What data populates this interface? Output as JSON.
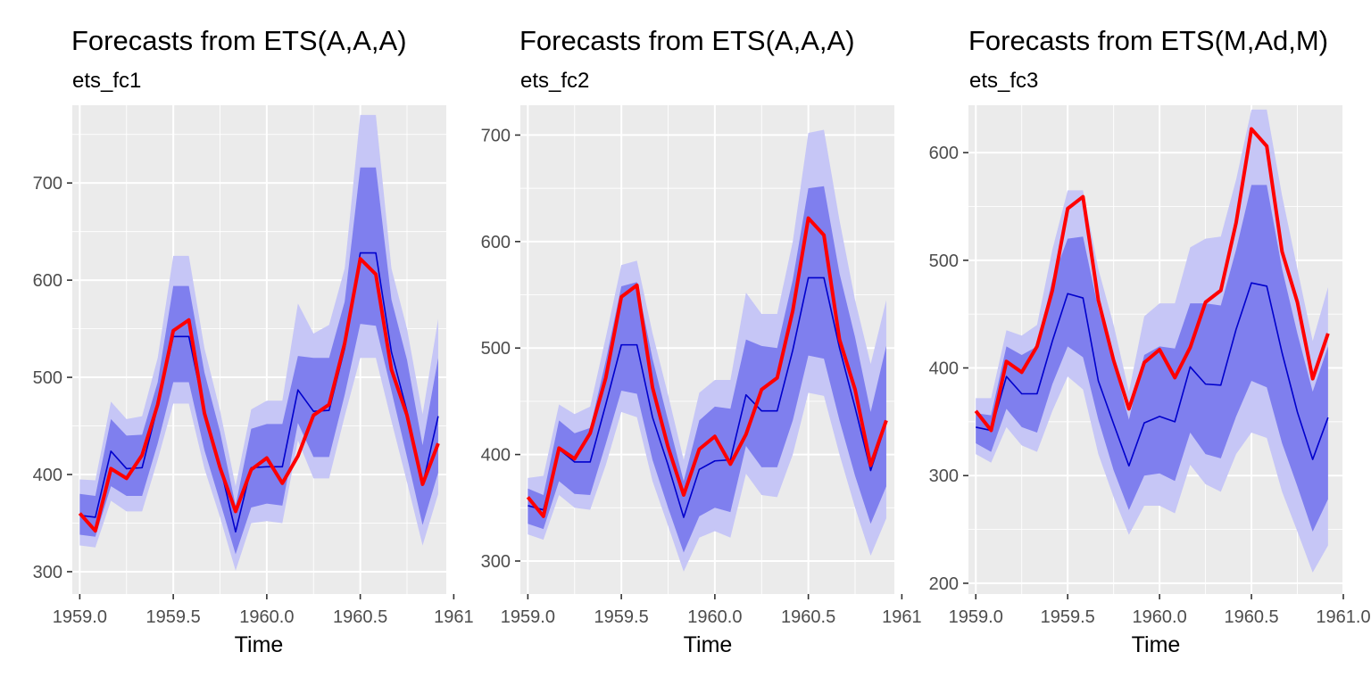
{
  "chart_data": [
    {
      "type": "line",
      "title": "Forecasts from ETS(A,A,A)",
      "subtitle": "ets_fc1",
      "xlabel": "Time",
      "ylabel": "",
      "xlim": [
        1958.96,
        1960.96
      ],
      "ylim": [
        277,
        780
      ],
      "xticks": [
        1959.0,
        1959.5,
        1960.0,
        1960.5,
        1961.0
      ],
      "xtick_labels": [
        "1959.0",
        "1959.5",
        "1960.0",
        "1960.5",
        "1961"
      ],
      "yticks": [
        300,
        400,
        500,
        600,
        700
      ],
      "ytick_labels": [
        "300",
        "400",
        "500",
        "600",
        "700"
      ],
      "grid": true,
      "x": [
        1959.0,
        1959.0833,
        1959.1667,
        1959.25,
        1959.3333,
        1959.4167,
        1959.5,
        1959.5833,
        1959.6667,
        1959.75,
        1959.8333,
        1959.9167,
        1960.0,
        1960.0833,
        1960.1667,
        1960.25,
        1960.3333,
        1960.4167,
        1960.5,
        1960.5833,
        1960.6667,
        1960.75,
        1960.8333,
        1960.9167
      ],
      "series": [
        {
          "name": "lo95",
          "values": [
            327,
            325,
            373,
            362,
            362,
            415,
            473,
            473,
            406,
            356,
            301,
            350,
            352,
            350,
            435,
            396,
            396,
            460,
            520,
            520,
            455,
            392,
            327,
            380
          ]
        },
        {
          "name": "lo80",
          "values": [
            338,
            336,
            388,
            378,
            378,
            432,
            495,
            495,
            425,
            372,
            318,
            366,
            370,
            368,
            453,
            418,
            418,
            482,
            555,
            553,
            486,
            418,
            348,
            402
          ]
        },
        {
          "name": "hi80",
          "values": [
            380,
            378,
            457,
            440,
            441,
            495,
            594,
            594,
            505,
            444,
            368,
            447,
            452,
            452,
            522,
            520,
            520,
            578,
            716,
            716,
            580,
            518,
            430,
            520
          ]
        },
        {
          "name": "hi95",
          "values": [
            395,
            394,
            475,
            457,
            460,
            520,
            625,
            625,
            530,
            466,
            388,
            467,
            476,
            476,
            576,
            545,
            554,
            612,
            770,
            770,
            612,
            550,
            462,
            560
          ]
        },
        {
          "name": "point",
          "values": [
            358,
            356,
            424,
            406,
            407,
            470,
            542,
            542,
            465,
            409,
            341,
            407,
            408,
            408,
            487,
            465,
            466,
            530,
            628,
            628,
            526,
            465,
            389,
            460
          ]
        },
        {
          "name": "actual",
          "values": [
            360,
            342,
            406,
            396,
            420,
            472,
            548,
            559,
            463,
            407,
            362,
            405,
            417,
            391,
            419,
            461,
            472,
            535,
            622,
            606,
            508,
            461,
            390,
            432
          ]
        }
      ]
    },
    {
      "type": "line",
      "title": "Forecasts from ETS(A,A,A)",
      "subtitle": "ets_fc2",
      "xlabel": "Time",
      "ylabel": "",
      "xlim": [
        1958.96,
        1960.96
      ],
      "ylim": [
        269,
        728
      ],
      "xticks": [
        1959.0,
        1959.5,
        1960.0,
        1960.5,
        1961.0
      ],
      "xtick_labels": [
        "1959.0",
        "1959.5",
        "1960.0",
        "1960.5",
        "1961"
      ],
      "yticks": [
        300,
        400,
        500,
        600,
        700
      ],
      "ytick_labels": [
        "300",
        "400",
        "500",
        "600",
        "700"
      ],
      "grid": true,
      "x": [
        1959.0,
        1959.0833,
        1959.1667,
        1959.25,
        1959.3333,
        1959.4167,
        1959.5,
        1959.5833,
        1959.6667,
        1959.75,
        1959.8333,
        1959.9167,
        1960.0,
        1960.0833,
        1960.1667,
        1960.25,
        1960.3333,
        1960.4167,
        1960.5,
        1960.5833,
        1960.6667,
        1960.75,
        1960.8333,
        1960.9167
      ],
      "series": [
        {
          "name": "lo95",
          "values": [
            325,
            320,
            362,
            350,
            348,
            390,
            440,
            435,
            375,
            333,
            290,
            322,
            328,
            322,
            382,
            362,
            360,
            400,
            458,
            455,
            400,
            350,
            305,
            340
          ]
        },
        {
          "name": "lo80",
          "values": [
            335,
            330,
            375,
            363,
            362,
            410,
            460,
            457,
            395,
            350,
            308,
            342,
            350,
            346,
            408,
            388,
            388,
            432,
            493,
            490,
            432,
            380,
            335,
            370
          ]
        },
        {
          "name": "hi80",
          "values": [
            368,
            362,
            432,
            420,
            425,
            488,
            558,
            562,
            490,
            432,
            375,
            432,
            445,
            443,
            508,
            502,
            500,
            564,
            650,
            652,
            570,
            510,
            440,
            502
          ]
        },
        {
          "name": "hi95",
          "values": [
            378,
            380,
            447,
            438,
            445,
            510,
            578,
            582,
            514,
            456,
            395,
            458,
            470,
            470,
            552,
            532,
            532,
            600,
            702,
            705,
            620,
            545,
            485,
            545
          ]
        },
        {
          "name": "point",
          "values": [
            352,
            348,
            405,
            393,
            393,
            447,
            503,
            503,
            435,
            390,
            341,
            386,
            394,
            395,
            456,
            441,
            441,
            498,
            566,
            566,
            500,
            444,
            385,
            430
          ]
        },
        {
          "name": "actual",
          "values": [
            360,
            342,
            406,
            396,
            420,
            472,
            548,
            559,
            463,
            407,
            362,
            405,
            417,
            391,
            419,
            461,
            472,
            535,
            622,
            606,
            508,
            461,
            390,
            432
          ]
        }
      ]
    },
    {
      "type": "line",
      "title": "Forecasts from ETS(M,Ad,M)",
      "subtitle": "ets_fc3",
      "xlabel": "Time",
      "ylabel": "",
      "xlim": [
        1958.96,
        1961.0
      ],
      "ylim": [
        190,
        644
      ],
      "xticks": [
        1959.0,
        1959.5,
        1960.0,
        1960.5,
        1961.0
      ],
      "xtick_labels": [
        "1959.0",
        "1959.5",
        "1960.0",
        "1960.5",
        "1961.0"
      ],
      "yticks": [
        200,
        300,
        400,
        500,
        600
      ],
      "ytick_labels": [
        "200",
        "300",
        "400",
        "500",
        "600"
      ],
      "grid": true,
      "x": [
        1959.0,
        1959.0833,
        1959.1667,
        1959.25,
        1959.3333,
        1959.4167,
        1959.5,
        1959.5833,
        1959.6667,
        1959.75,
        1959.8333,
        1959.9167,
        1960.0,
        1960.0833,
        1960.1667,
        1960.25,
        1960.3333,
        1960.4167,
        1960.5,
        1960.5833,
        1960.6667,
        1960.75,
        1960.8333,
        1960.9167
      ],
      "series": [
        {
          "name": "lo95",
          "values": [
            320,
            312,
            345,
            328,
            322,
            360,
            392,
            380,
            320,
            280,
            245,
            272,
            272,
            265,
            310,
            292,
            285,
            320,
            340,
            335,
            285,
            248,
            210,
            235
          ]
        },
        {
          "name": "lo80",
          "values": [
            330,
            322,
            362,
            345,
            340,
            385,
            420,
            410,
            352,
            305,
            268,
            300,
            302,
            295,
            340,
            320,
            316,
            355,
            388,
            382,
            330,
            290,
            248,
            278
          ]
        },
        {
          "name": "hi80",
          "values": [
            358,
            356,
            420,
            412,
            420,
            482,
            520,
            522,
            455,
            405,
            352,
            412,
            420,
            418,
            460,
            460,
            458,
            510,
            570,
            570,
            492,
            432,
            378,
            420
          ]
        },
        {
          "name": "hi95",
          "values": [
            372,
            372,
            435,
            430,
            440,
            510,
            565,
            565,
            492,
            440,
            378,
            448,
            460,
            460,
            512,
            520,
            522,
            575,
            640,
            640,
            560,
            492,
            425,
            475
          ]
        },
        {
          "name": "point",
          "values": [
            345,
            342,
            392,
            376,
            376,
            425,
            469,
            465,
            388,
            348,
            309,
            349,
            355,
            350,
            401,
            385,
            384,
            436,
            479,
            476,
            414,
            359,
            315,
            354
          ]
        },
        {
          "name": "actual",
          "values": [
            360,
            342,
            406,
            396,
            420,
            472,
            548,
            559,
            463,
            407,
            362,
            405,
            417,
            391,
            419,
            461,
            472,
            535,
            622,
            606,
            508,
            461,
            390,
            432
          ]
        }
      ]
    }
  ],
  "colors": {
    "panel_bg": "#ebebeb",
    "grid": "#ffffff",
    "band95": "#c6c6f6",
    "band80": "#7f7fee",
    "point_line": "#0000cc",
    "actual_line": "#ff0000"
  }
}
